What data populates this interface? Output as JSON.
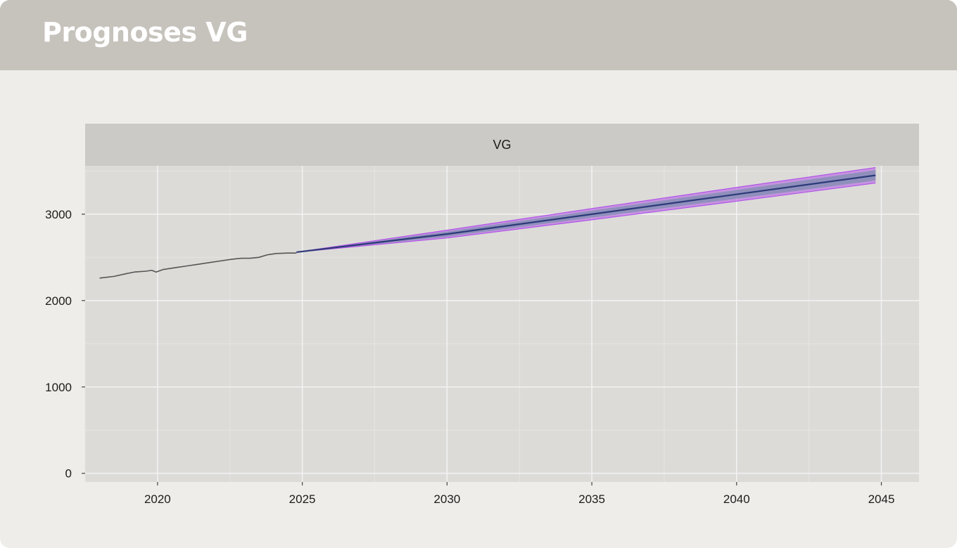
{
  "header": {
    "title": "Prognoses VG"
  },
  "chart_data": {
    "type": "line",
    "facet_label": "VG",
    "xlabel": "",
    "ylabel": "",
    "xlim": [
      2017.5,
      2046.3
    ],
    "ylim": [
      -100,
      3560
    ],
    "x_ticks": [
      2020,
      2025,
      2030,
      2035,
      2040,
      2045
    ],
    "y_ticks": [
      0,
      1000,
      2000,
      3000
    ],
    "grid": true,
    "legend": "none",
    "colors": {
      "observed": "#555555",
      "forecast": "#2c3a78",
      "band_inner": "#8a8fb8",
      "band_outer": "#b255e8",
      "panel": "#dcdbd8",
      "strip": "#cbcac6",
      "grid_major": "#f2f2f2",
      "grid_minor": "#e6e5e2"
    },
    "series": [
      {
        "role": "observed",
        "x": [
          2018.0,
          2018.5,
          2018.9,
          2019.2,
          2019.6,
          2019.8,
          2019.95,
          2020.2,
          2020.6,
          2021.0,
          2021.4,
          2021.8,
          2022.2,
          2022.6,
          2022.9,
          2023.2,
          2023.5,
          2023.8,
          2024.1,
          2024.5,
          2024.8
        ],
        "y": [
          2260,
          2280,
          2310,
          2330,
          2340,
          2350,
          2330,
          2360,
          2380,
          2400,
          2420,
          2440,
          2460,
          2480,
          2490,
          2490,
          2500,
          2530,
          2545,
          2550,
          2550
        ]
      },
      {
        "role": "forecast",
        "x": [
          2024.8,
          2030,
          2035,
          2040,
          2044.8
        ],
        "y": [
          2560,
          2770,
          3000,
          3230,
          3450
        ],
        "inner_low": [
          2560,
          2740,
          2960,
          3180,
          3390
        ],
        "inner_high": [
          2560,
          2800,
          3040,
          3280,
          3510
        ],
        "outer_low": [
          2560,
          2725,
          2935,
          3150,
          3360
        ],
        "outer_high": [
          2560,
          2815,
          3065,
          3310,
          3540
        ]
      }
    ]
  }
}
